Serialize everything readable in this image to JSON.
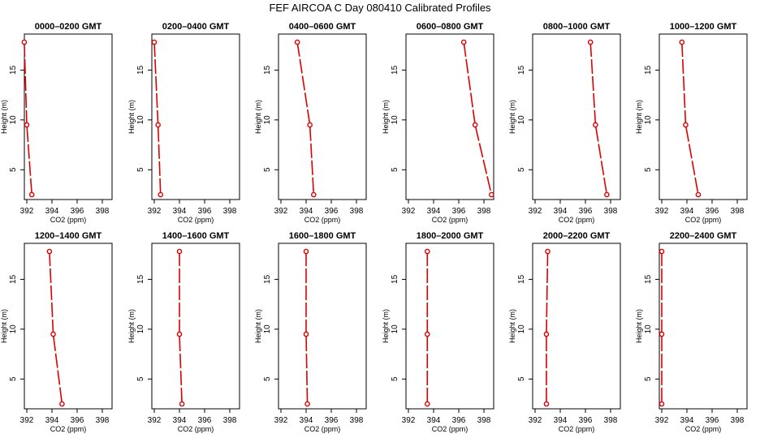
{
  "title": "FEF  AIRCOA C  Day 080410  Calibrated Profiles",
  "colors": {
    "series": "#dd0000",
    "axis": "#000000"
  },
  "chart_data": [
    {
      "type": "line",
      "title": "0000–0200 GMT",
      "xlabel": "CO2 (ppm)",
      "ylabel": "Height (m)",
      "xlim": [
        392,
        398
      ],
      "ylim": [
        2.5,
        17.8
      ],
      "x_ticks": [
        392,
        394,
        396,
        398
      ],
      "y_ticks": [
        5,
        10,
        15
      ],
      "points": [
        {
          "x": 391.8,
          "y": 17.8
        },
        {
          "x": 392.0,
          "y": 9.5
        },
        {
          "x": 392.4,
          "y": 2.5
        }
      ]
    },
    {
      "type": "line",
      "title": "0200–0400 GMT",
      "xlabel": "CO2 (ppm)",
      "ylabel": "Height (m)",
      "xlim": [
        392,
        398
      ],
      "ylim": [
        2.5,
        17.8
      ],
      "x_ticks": [
        392,
        394,
        396,
        398
      ],
      "y_ticks": [
        5,
        10,
        15
      ],
      "points": [
        {
          "x": 392.0,
          "y": 17.8
        },
        {
          "x": 392.3,
          "y": 9.5
        },
        {
          "x": 392.5,
          "y": 2.5
        }
      ]
    },
    {
      "type": "line",
      "title": "0400–0600 GMT",
      "xlabel": "CO2 (ppm)",
      "ylabel": "Height (m)",
      "xlim": [
        392,
        398
      ],
      "ylim": [
        2.5,
        17.8
      ],
      "x_ticks": [
        392,
        394,
        396,
        398
      ],
      "y_ticks": [
        5,
        10,
        15
      ],
      "points": [
        {
          "x": 393.3,
          "y": 17.8
        },
        {
          "x": 394.3,
          "y": 9.5
        },
        {
          "x": 394.6,
          "y": 2.5
        }
      ]
    },
    {
      "type": "line",
      "title": "0600–0800 GMT",
      "xlabel": "CO2 (ppm)",
      "ylabel": "Height (m)",
      "xlim": [
        392,
        398
      ],
      "ylim": [
        2.5,
        17.8
      ],
      "x_ticks": [
        392,
        394,
        396,
        398
      ],
      "y_ticks": [
        5,
        10,
        15
      ],
      "points": [
        {
          "x": 396.4,
          "y": 17.8
        },
        {
          "x": 397.3,
          "y": 9.5
        },
        {
          "x": 398.6,
          "y": 2.5
        }
      ]
    },
    {
      "type": "line",
      "title": "0800–1000 GMT",
      "xlabel": "CO2 (ppm)",
      "ylabel": "Height (m)",
      "xlim": [
        392,
        398
      ],
      "ylim": [
        2.5,
        17.8
      ],
      "x_ticks": [
        392,
        394,
        396,
        398
      ],
      "y_ticks": [
        5,
        10,
        15
      ],
      "points": [
        {
          "x": 396.4,
          "y": 17.8
        },
        {
          "x": 396.8,
          "y": 9.5
        },
        {
          "x": 397.7,
          "y": 2.5
        }
      ]
    },
    {
      "type": "line",
      "title": "1000–1200 GMT",
      "xlabel": "CO2 (ppm)",
      "ylabel": "Height (m)",
      "xlim": [
        392,
        398
      ],
      "ylim": [
        2.5,
        17.8
      ],
      "x_ticks": [
        392,
        394,
        396,
        398
      ],
      "y_ticks": [
        5,
        10,
        15
      ],
      "points": [
        {
          "x": 393.6,
          "y": 17.8
        },
        {
          "x": 393.9,
          "y": 9.5
        },
        {
          "x": 394.9,
          "y": 2.5
        }
      ]
    },
    {
      "type": "line",
      "title": "1200–1400 GMT",
      "xlabel": "CO2 (ppm)",
      "ylabel": "Height (m)",
      "xlim": [
        392,
        398
      ],
      "ylim": [
        2.5,
        17.8
      ],
      "x_ticks": [
        392,
        394,
        396,
        398
      ],
      "y_ticks": [
        5,
        10,
        15
      ],
      "points": [
        {
          "x": 393.8,
          "y": 17.8
        },
        {
          "x": 394.1,
          "y": 9.5
        },
        {
          "x": 394.8,
          "y": 2.5
        }
      ]
    },
    {
      "type": "line",
      "title": "1400–1600 GMT",
      "xlabel": "CO2 (ppm)",
      "ylabel": "Height (m)",
      "xlim": [
        392,
        398
      ],
      "ylim": [
        2.5,
        17.8
      ],
      "x_ticks": [
        392,
        394,
        396,
        398
      ],
      "y_ticks": [
        5,
        10,
        15
      ],
      "points": [
        {
          "x": 394.0,
          "y": 17.8
        },
        {
          "x": 394.0,
          "y": 9.5
        },
        {
          "x": 394.2,
          "y": 2.5
        }
      ]
    },
    {
      "type": "line",
      "title": "1600–1800 GMT",
      "xlabel": "CO2 (ppm)",
      "ylabel": "Height (m)",
      "xlim": [
        392,
        398
      ],
      "ylim": [
        2.5,
        17.8
      ],
      "x_ticks": [
        392,
        394,
        396,
        398
      ],
      "y_ticks": [
        5,
        10,
        15
      ],
      "points": [
        {
          "x": 394.0,
          "y": 17.8
        },
        {
          "x": 394.0,
          "y": 9.5
        },
        {
          "x": 394.1,
          "y": 2.5
        }
      ]
    },
    {
      "type": "line",
      "title": "1800–2000 GMT",
      "xlabel": "CO2 (ppm)",
      "ylabel": "Height (m)",
      "xlim": [
        392,
        398
      ],
      "ylim": [
        2.5,
        17.8
      ],
      "x_ticks": [
        392,
        394,
        396,
        398
      ],
      "y_ticks": [
        5,
        10,
        15
      ],
      "points": [
        {
          "x": 393.5,
          "y": 17.8
        },
        {
          "x": 393.5,
          "y": 9.5
        },
        {
          "x": 393.5,
          "y": 2.5
        }
      ]
    },
    {
      "type": "line",
      "title": "2000–2200 GMT",
      "xlabel": "CO2 (ppm)",
      "ylabel": "Height (m)",
      "xlim": [
        392,
        398
      ],
      "ylim": [
        2.5,
        17.8
      ],
      "x_ticks": [
        392,
        394,
        396,
        398
      ],
      "y_ticks": [
        5,
        10,
        15
      ],
      "points": [
        {
          "x": 393.0,
          "y": 17.8
        },
        {
          "x": 392.9,
          "y": 9.5
        },
        {
          "x": 392.9,
          "y": 2.5
        }
      ]
    },
    {
      "type": "line",
      "title": "2200–2400 GMT",
      "xlabel": "CO2 (ppm)",
      "ylabel": "Height (m)",
      "xlim": [
        392,
        398
      ],
      "ylim": [
        2.5,
        17.8
      ],
      "x_ticks": [
        392,
        394,
        396,
        398
      ],
      "y_ticks": [
        5,
        10,
        15
      ],
      "points": [
        {
          "x": 392.0,
          "y": 17.8
        },
        {
          "x": 392.0,
          "y": 9.5
        },
        {
          "x": 392.0,
          "y": 2.5
        }
      ]
    }
  ]
}
